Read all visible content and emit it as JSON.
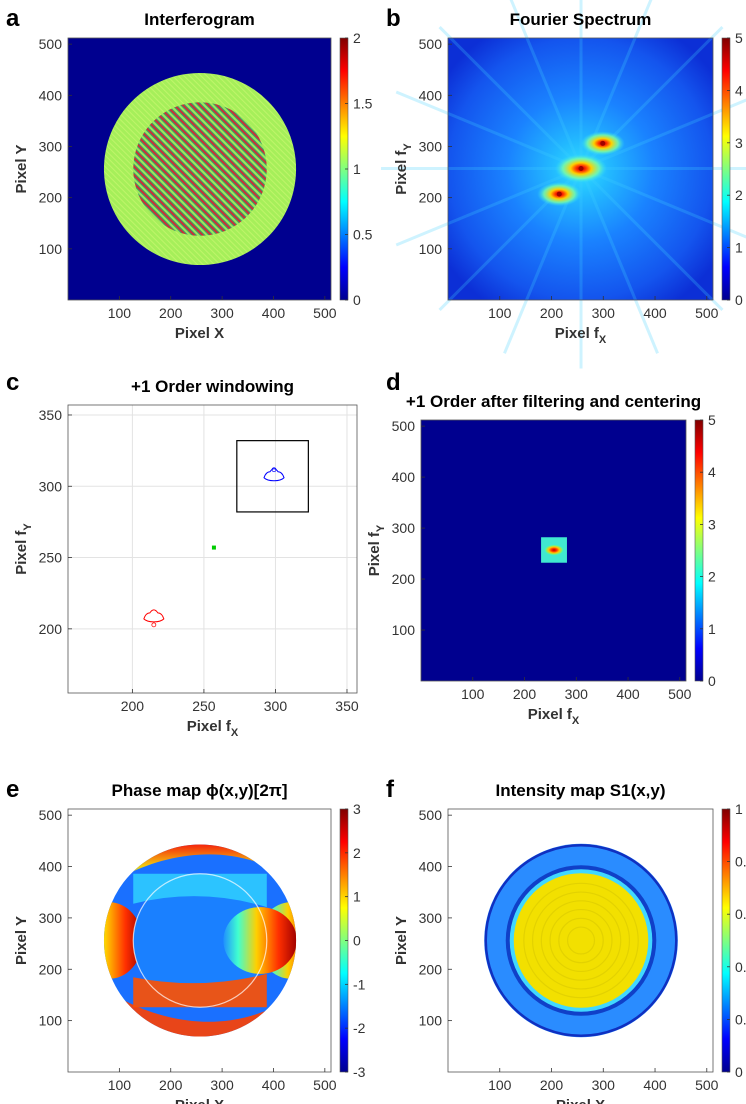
{
  "colormap": "jet",
  "colors": {
    "bg_dark_blue": "#00008f",
    "annulus": "#a6ef5a",
    "window_box": "#000000",
    "order_plus": "#0000ff",
    "order_minus": "#ff0000",
    "order_zero": "#00cc00"
  },
  "panels": [
    {
      "letter": "a",
      "title": "Interferogram",
      "xlabel": "Pixel X",
      "ylabel": "Pixel Y"
    },
    {
      "letter": "b",
      "title": "Fourier Spectrum",
      "xlabel": "Pixel f",
      "xsub": "X",
      "ylabel": "Pixel f",
      "ysub": "Y"
    },
    {
      "letter": "c",
      "title": "+1 Order windowing",
      "xlabel": "Pixel f",
      "xsub": "X",
      "ylabel": "Pixel f",
      "ysub": "Y"
    },
    {
      "letter": "d",
      "title": "+1 Order after filtering and centering",
      "xlabel": "Pixel f",
      "xsub": "X",
      "ylabel": "Pixel f",
      "ysub": "Y"
    },
    {
      "letter": "e",
      "title": "Phase map ϕ(x,y)[2π]",
      "xlabel": "Pixel X",
      "ylabel": "Pixel Y"
    },
    {
      "letter": "f",
      "title": "Intensity map S1(x,y)",
      "xlabel": "Pixel X",
      "ylabel": "Pixel Y"
    }
  ],
  "chart_data": [
    {
      "type": "heatmap",
      "panel": "a",
      "xlim": [
        0,
        512
      ],
      "ylim": [
        0,
        512
      ],
      "xticks": [
        "100",
        "200",
        "300",
        "400",
        "500"
      ],
      "yticks": [
        "100",
        "200",
        "300",
        "400",
        "500"
      ],
      "clim": [
        0,
        2
      ],
      "cticks": [
        "0",
        "0.5",
        "1",
        "1.5",
        "2"
      ],
      "annulus": {
        "center": [
          257,
          256
        ],
        "outer_radius": 187,
        "inner_radius": 130
      }
    },
    {
      "type": "heatmap",
      "panel": "b",
      "xlim": [
        0,
        512
      ],
      "ylim": [
        0,
        512
      ],
      "xticks": [
        "100",
        "200",
        "300",
        "400",
        "500"
      ],
      "yticks": [
        "100",
        "200",
        "300",
        "400",
        "500"
      ],
      "clim": [
        0,
        5
      ],
      "cticks": [
        "0",
        "1",
        "2",
        "3",
        "4",
        "5"
      ],
      "peaks": [
        {
          "x": 257,
          "y": 257,
          "order": 0
        },
        {
          "x": 299,
          "y": 306,
          "order": 1
        },
        {
          "x": 215,
          "y": 207,
          "order": -1
        }
      ]
    },
    {
      "type": "scatter",
      "panel": "c",
      "xlim": [
        155,
        357
      ],
      "ylim": [
        155,
        357
      ],
      "xticks": [
        "200",
        "250",
        "300",
        "350"
      ],
      "yticks": [
        "200",
        "250",
        "300",
        "350"
      ],
      "grid": true,
      "window": {
        "x": [
          273,
          323
        ],
        "y": [
          282,
          332
        ]
      },
      "points": [
        {
          "x": 257,
          "y": 257,
          "order": 0
        },
        {
          "x": 299,
          "y": 306,
          "order": 1
        },
        {
          "x": 215,
          "y": 207,
          "order": -1
        }
      ]
    },
    {
      "type": "heatmap",
      "panel": "d",
      "xlim": [
        0,
        512
      ],
      "ylim": [
        0,
        512
      ],
      "xticks": [
        "100",
        "200",
        "300",
        "400",
        "500"
      ],
      "yticks": [
        "100",
        "200",
        "300",
        "400",
        "500"
      ],
      "clim": [
        0,
        5
      ],
      "cticks": [
        "0",
        "1",
        "2",
        "3",
        "4",
        "5"
      ],
      "window": {
        "x": [
          232,
          282
        ],
        "y": [
          232,
          282
        ]
      },
      "peak": {
        "x": 257,
        "y": 257
      }
    },
    {
      "type": "heatmap",
      "panel": "e",
      "xlim": [
        0,
        512
      ],
      "ylim": [
        0,
        512
      ],
      "xticks": [
        "100",
        "200",
        "300",
        "400",
        "500"
      ],
      "yticks": [
        "100",
        "200",
        "300",
        "400",
        "500"
      ],
      "clim": [
        -3.14,
        3.14
      ],
      "cticks": [
        "-3",
        "-2",
        "-1",
        "0",
        "1",
        "2",
        "3"
      ],
      "aperture": {
        "center": [
          257,
          256
        ],
        "outer_radius": 187,
        "inner_radius": 130
      }
    },
    {
      "type": "heatmap",
      "panel": "f",
      "xlim": [
        0,
        512
      ],
      "ylim": [
        0,
        512
      ],
      "xticks": [
        "100",
        "200",
        "300",
        "400",
        "500"
      ],
      "yticks": [
        "100",
        "200",
        "300",
        "400",
        "500"
      ],
      "clim": [
        0,
        1
      ],
      "cticks": [
        "0",
        "0.",
        "0.",
        "0.",
        "0.",
        "1"
      ],
      "aperture": {
        "center": [
          257,
          256
        ],
        "outer_radius": 187,
        "inner_radius": 130
      }
    }
  ]
}
